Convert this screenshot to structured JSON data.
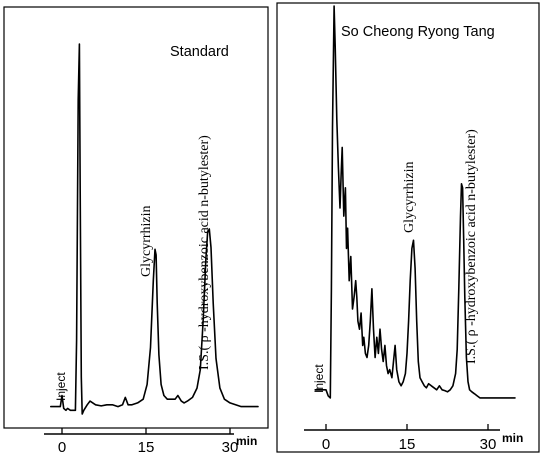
{
  "chart_data": [
    {
      "type": "line",
      "title": "Standard",
      "xlabel": "min",
      "xlim": [
        -2,
        35
      ],
      "xticks": [
        0,
        15,
        30
      ],
      "inject_label": "Inject",
      "annotations": [
        {
          "text": "Glycyrrhizin",
          "x": 16.8,
          "y": 0.47
        },
        {
          "text": "I.S.( ρ -hydroxybenzoic acid n-butylester)",
          "x": 26.3,
          "y": 0.54
        }
      ],
      "series": [
        {
          "x": [
            -2,
            -0.3,
            0,
            0.3,
            0.7,
            1,
            1.5,
            2,
            2.4,
            2.6,
            2.9,
            3.1,
            3.25,
            3.45,
            3.6,
            3.9,
            4.5,
            5,
            6,
            7,
            8,
            9,
            10,
            10.8,
            11.3,
            11.8,
            12.5,
            13.5,
            14.5,
            15.2,
            15.8,
            16.3,
            16.6,
            16.8,
            17,
            17.3,
            17.7,
            18.2,
            18.8,
            19.5,
            20.2,
            20.7,
            21.3,
            21.8,
            22.4,
            23.3,
            24.1,
            24.7,
            25.2,
            25.7,
            26,
            26.3,
            26.6,
            27,
            27.5,
            28.2,
            29,
            30,
            31,
            32,
            33,
            34,
            35
          ],
          "y": [
            0.02,
            0.02,
            0.05,
            0.015,
            0.01,
            0.015,
            0.01,
            0.01,
            0.01,
            0.2,
            0.85,
            1.0,
            0.6,
            0.1,
            0.0,
            0.01,
            0.025,
            0.035,
            0.025,
            0.022,
            0.025,
            0.025,
            0.02,
            0.025,
            0.045,
            0.025,
            0.025,
            0.03,
            0.04,
            0.08,
            0.18,
            0.36,
            0.445,
            0.43,
            0.3,
            0.16,
            0.08,
            0.05,
            0.04,
            0.04,
            0.04,
            0.05,
            0.035,
            0.03,
            0.035,
            0.045,
            0.07,
            0.12,
            0.25,
            0.42,
            0.49,
            0.5,
            0.45,
            0.3,
            0.15,
            0.07,
            0.04,
            0.03,
            0.025,
            0.02,
            0.02,
            0.02,
            0.02
          ]
        }
      ]
    },
    {
      "type": "line",
      "title": "So Cheong Ryong Tang",
      "xlabel": "min",
      "xlim": [
        -2,
        35
      ],
      "xticks": [
        0,
        15,
        30
      ],
      "inject_label": "Inject",
      "annotations": [
        {
          "text": "Glycyrrhizin",
          "x": 16.5,
          "y": 0.42
        },
        {
          "text": "I.S.( ρ -hydroxybenzoic acid n-butylester)",
          "x": 25.5,
          "y": 0.56
        }
      ],
      "series": [
        {
          "x": [
            -2,
            0,
            0.4,
            0.8,
            1,
            1.2,
            1.5,
            1.7,
            2,
            2.3,
            2.6,
            2.8,
            3,
            3.3,
            3.6,
            3.8,
            4,
            4.3,
            4.6,
            4.9,
            5.2,
            5.5,
            5.7,
            5.9,
            6.2,
            6.5,
            6.8,
            7,
            7.3,
            7.6,
            7.9,
            8.2,
            8.5,
            8.8,
            9.1,
            9.4,
            9.7,
            10,
            10.3,
            10.6,
            10.9,
            11.2,
            11.5,
            11.8,
            12.2,
            12.5,
            12.8,
            13.1,
            13.5,
            13.9,
            14.3,
            14.7,
            15,
            15.3,
            15.6,
            15.9,
            16.2,
            16.5,
            16.8,
            17.1,
            17.4,
            17.8,
            18.2,
            18.6,
            19,
            19.5,
            20,
            20.5,
            21,
            21.5,
            22,
            22.5,
            23,
            23.5,
            24,
            24.3,
            24.6,
            24.9,
            25.1,
            25.3,
            25.5,
            25.7,
            26,
            26.3,
            26.6,
            27,
            27.5,
            28,
            28.5,
            29,
            30,
            31,
            32,
            33,
            34,
            35
          ],
          "y": [
            0.05,
            0.05,
            0.035,
            0.03,
            0.3,
            0.7,
            1.0,
            0.9,
            0.72,
            0.6,
            0.5,
            0.58,
            0.65,
            0.48,
            0.55,
            0.4,
            0.45,
            0.32,
            0.38,
            0.25,
            0.28,
            0.32,
            0.28,
            0.22,
            0.2,
            0.24,
            0.16,
            0.18,
            0.14,
            0.13,
            0.16,
            0.22,
            0.3,
            0.2,
            0.13,
            0.18,
            0.14,
            0.2,
            0.15,
            0.12,
            0.16,
            0.11,
            0.09,
            0.1,
            0.08,
            0.12,
            0.16,
            0.1,
            0.07,
            0.06,
            0.07,
            0.09,
            0.14,
            0.22,
            0.32,
            0.4,
            0.42,
            0.35,
            0.22,
            0.12,
            0.08,
            0.07,
            0.06,
            0.055,
            0.065,
            0.06,
            0.055,
            0.05,
            0.06,
            0.05,
            0.048,
            0.045,
            0.05,
            0.06,
            0.09,
            0.15,
            0.3,
            0.48,
            0.56,
            0.55,
            0.42,
            0.28,
            0.13,
            0.07,
            0.05,
            0.045,
            0.04,
            0.035,
            0.03,
            0.03,
            0.03,
            0.03,
            0.03,
            0.03,
            0.03,
            0.03
          ]
        }
      ]
    }
  ]
}
